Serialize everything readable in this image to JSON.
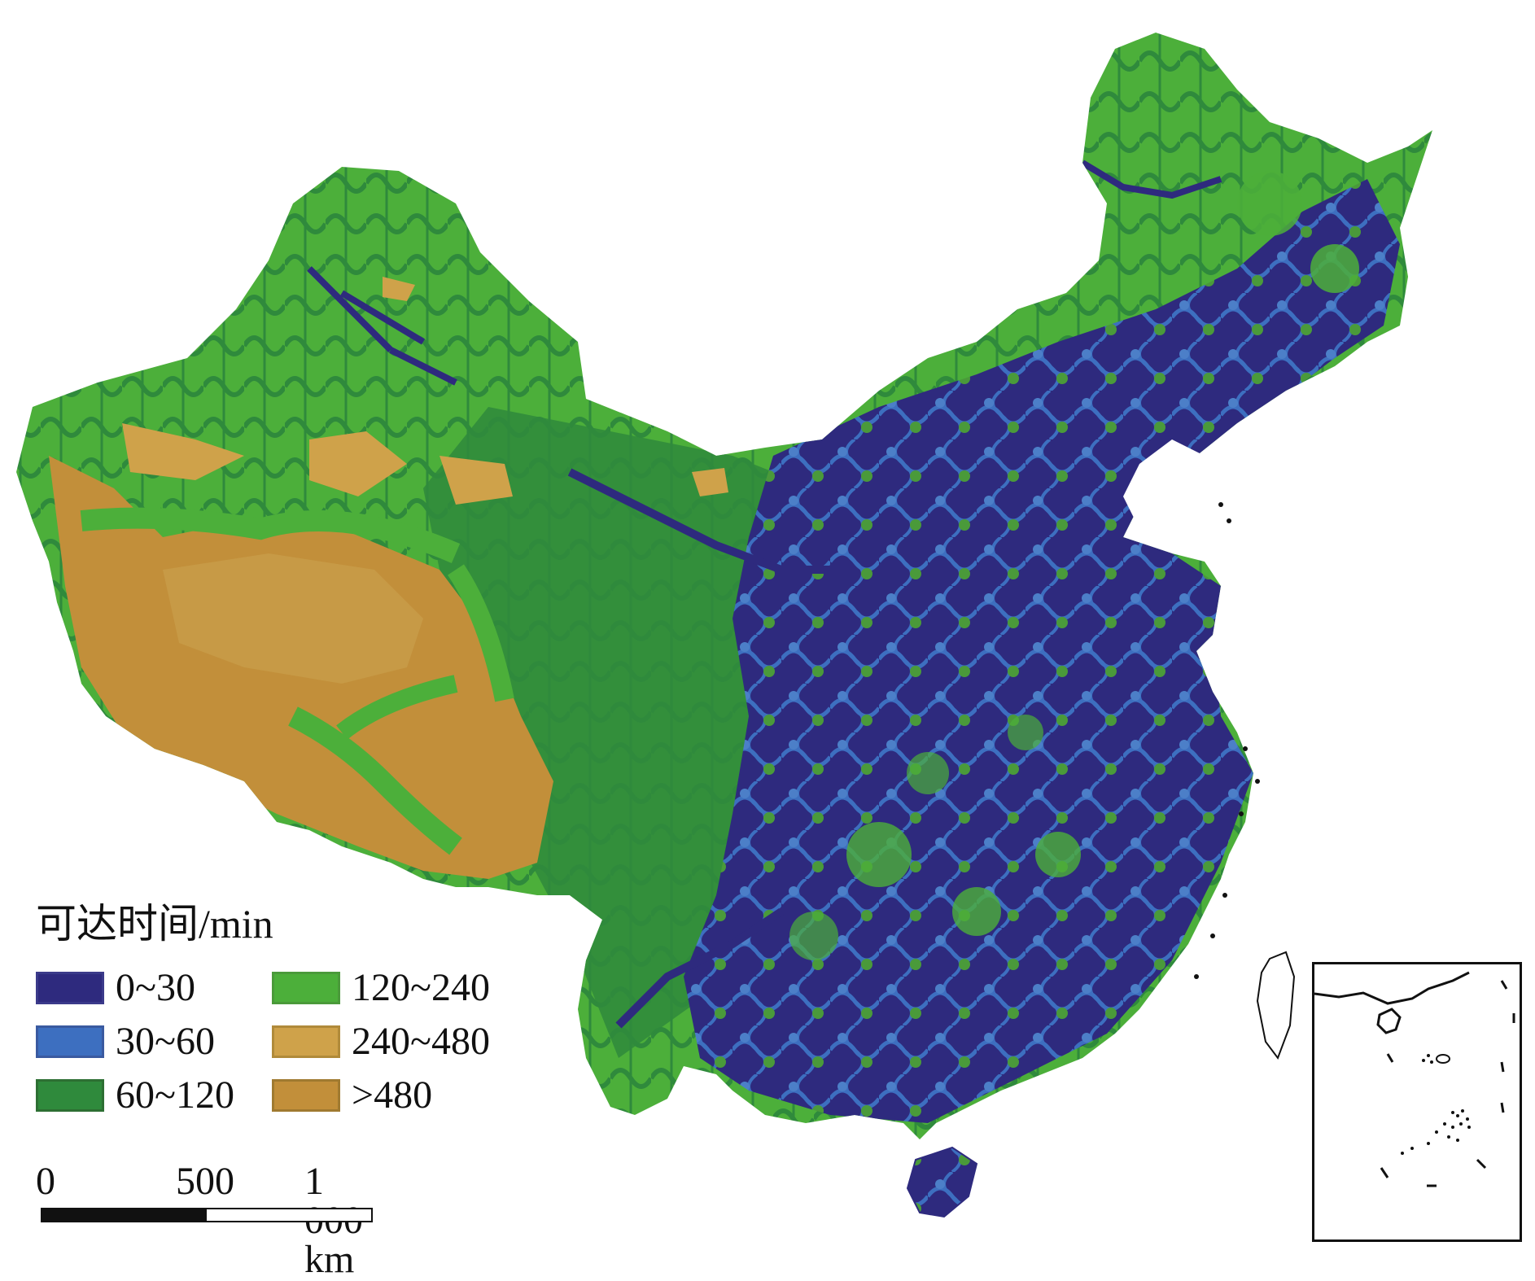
{
  "map": {
    "legend": {
      "title": "可达时间/min",
      "items": [
        {
          "label": "0~30",
          "color": "#2e2a7e",
          "border": "#3b3a8a"
        },
        {
          "label": "120~240",
          "color": "#4caf3a",
          "border": "#4a9a3a"
        },
        {
          "label": "30~60",
          "color": "#3d6fc0",
          "border": "#3a5aa0"
        },
        {
          "label": "240~480",
          "color": "#cfa24a",
          "border": "#b08a3a"
        },
        {
          "label": "60~120",
          "color": "#2f8a3c",
          "border": "#2d6f33"
        },
        {
          "label": ">480",
          "color": "#c28f3a",
          "border": "#a07a30"
        }
      ]
    },
    "scale": {
      "labels": [
        "0",
        "500",
        "1 000 km"
      ]
    },
    "colors": {
      "t0_30": "#2e2a7e",
      "t30_60": "#3d6fc0",
      "t60_120": "#2f8a3c",
      "t120_240": "#4caf3a",
      "t240_480": "#cfa24a",
      "t480": "#c28f3a"
    }
  }
}
